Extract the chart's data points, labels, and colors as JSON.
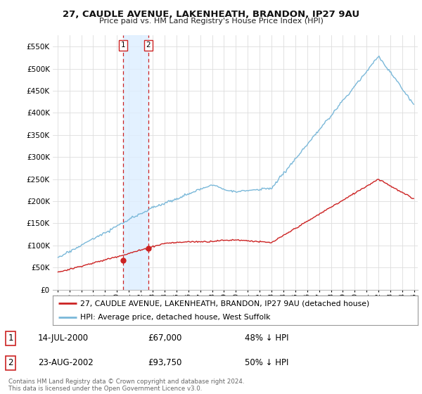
{
  "title": "27, CAUDLE AVENUE, LAKENHEATH, BRANDON, IP27 9AU",
  "subtitle": "Price paid vs. HM Land Registry's House Price Index (HPI)",
  "legend_line1": "27, CAUDLE AVENUE, LAKENHEATH, BRANDON, IP27 9AU (detached house)",
  "legend_line2": "HPI: Average price, detached house, West Suffolk",
  "footnote": "Contains HM Land Registry data © Crown copyright and database right 2024.\nThis data is licensed under the Open Government Licence v3.0.",
  "transaction1_date": "14-JUL-2000",
  "transaction1_price": 67000,
  "transaction1_note": "48% ↓ HPI",
  "transaction2_date": "23-AUG-2002",
  "transaction2_price": 93750,
  "transaction2_note": "50% ↓ HPI",
  "hpi_color": "#7ab8d9",
  "price_color": "#cc2222",
  "marker_color": "#cc2222",
  "transaction_vline_color": "#cc2222",
  "transaction_box_color": "#ddeeff",
  "ylim": [
    0,
    575000
  ],
  "ytick_values": [
    0,
    50000,
    100000,
    150000,
    200000,
    250000,
    300000,
    350000,
    400000,
    450000,
    500000,
    550000
  ],
  "background_color": "#ffffff",
  "grid_color": "#dddddd"
}
